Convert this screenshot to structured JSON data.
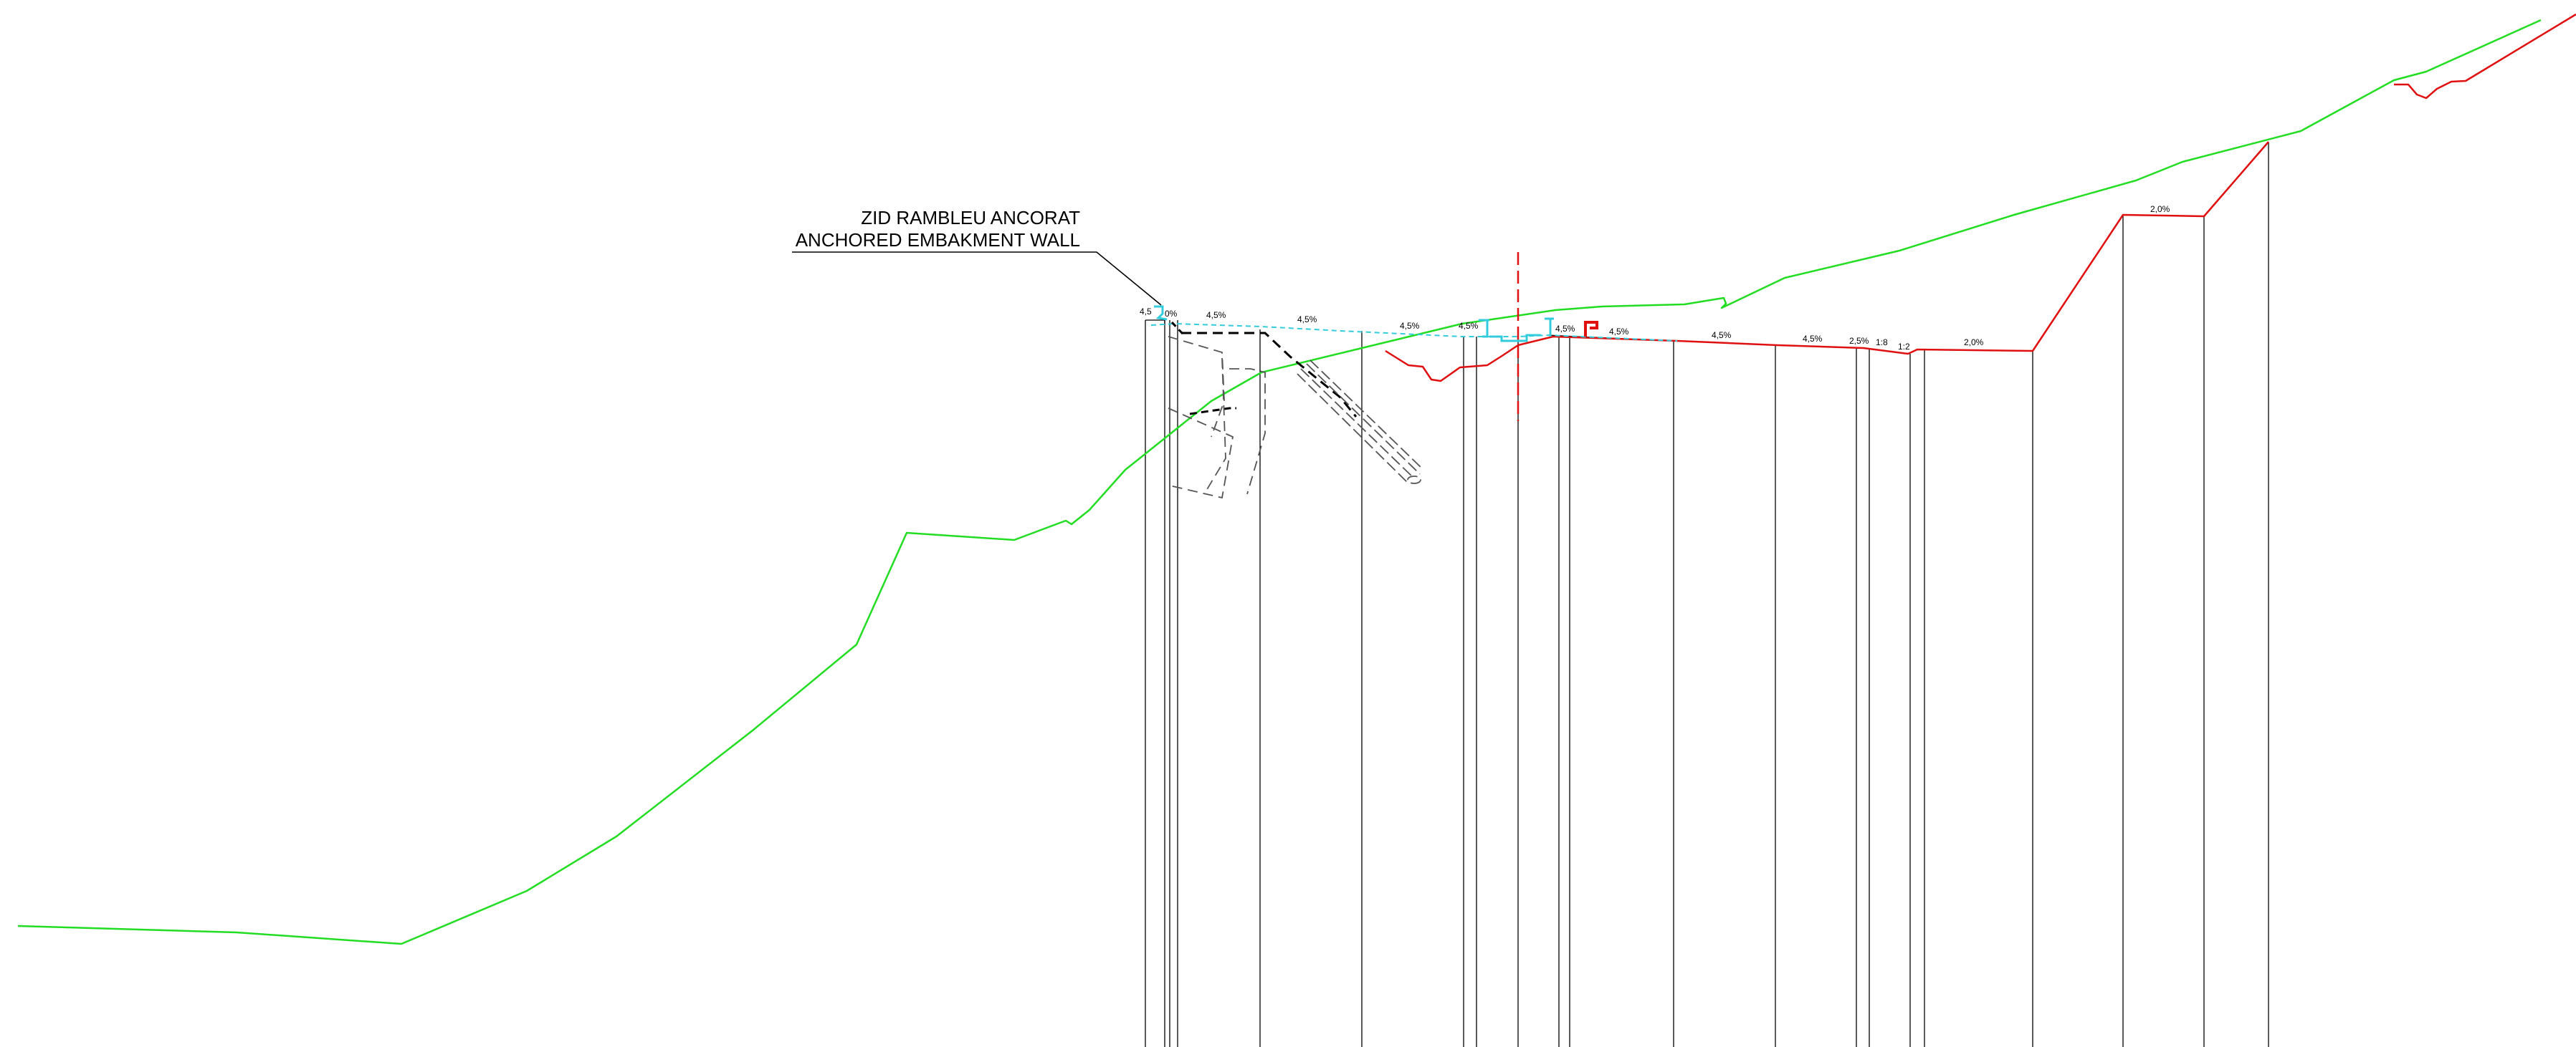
{
  "callout": {
    "line1": "ZID RAMBLEU ANCORAT",
    "line2": "ANCHORED EMBAKMENT WALL"
  },
  "slopes": [
    {
      "id": "s1",
      "text": "4,5"
    },
    {
      "id": "s2",
      "text": "0%"
    },
    {
      "id": "s3",
      "text": "4,5%"
    },
    {
      "id": "s4",
      "text": "4,5%"
    },
    {
      "id": "s5",
      "text": "4,5%"
    },
    {
      "id": "s6",
      "text": "4,5%"
    },
    {
      "id": "s7",
      "text": "4,5%"
    },
    {
      "id": "s8",
      "text": "4,5%"
    },
    {
      "id": "s9",
      "text": "4,5%"
    },
    {
      "id": "s10",
      "text": "4,5%"
    },
    {
      "id": "s11",
      "text": "2,5%"
    },
    {
      "id": "s12",
      "text": "1:8"
    },
    {
      "id": "s13",
      "text": "1:2"
    },
    {
      "id": "s14",
      "text": "2,0%"
    },
    {
      "id": "s15",
      "text": "2,0%"
    }
  ],
  "colors": {
    "existing_ground": "#22dd22",
    "design_profile": "#e01010",
    "reference_dashed": "#33ccdd",
    "axis": "#e01010",
    "lines": "#000000",
    "structure_dashed": "#555555"
  }
}
